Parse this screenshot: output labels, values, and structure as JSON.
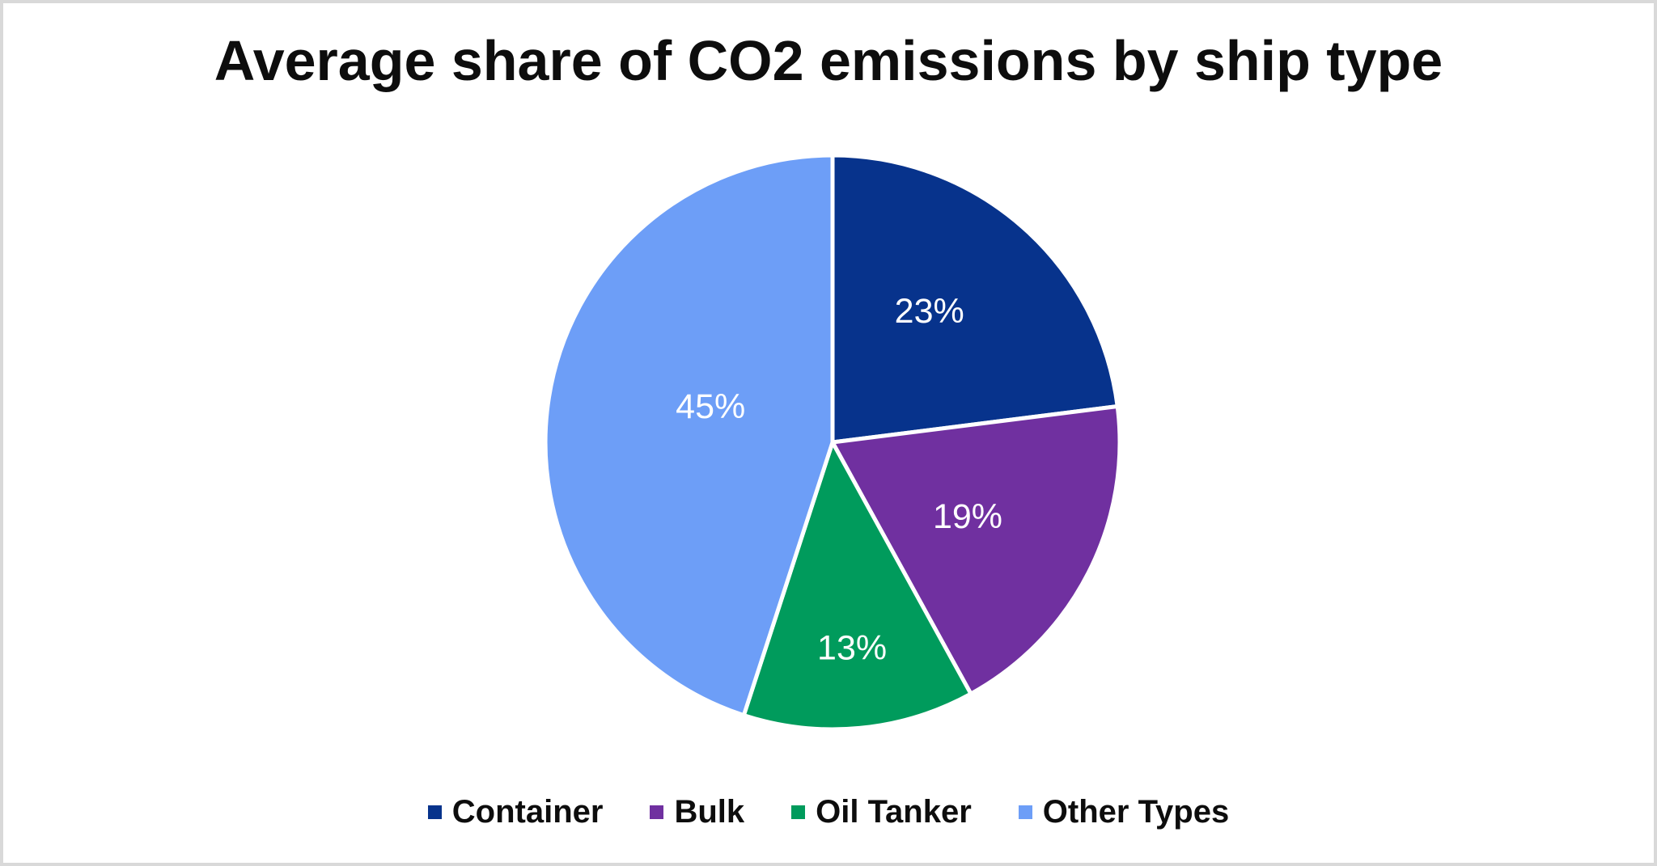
{
  "frame": {
    "background_color": "#FFFFFF",
    "border_color": "#D9D9D9"
  },
  "chart_data": {
    "type": "pie",
    "title": "Average share of CO2 emissions by ship type",
    "categories": [
      "Container",
      "Bulk",
      "Oil Tanker",
      "Other Types"
    ],
    "values": [
      23,
      19,
      13,
      45
    ],
    "slice_labels": [
      "23%",
      "19%",
      "13%",
      "45%"
    ],
    "colors": [
      "#07338C",
      "#7030A0",
      "#009B5C",
      "#6D9EF7"
    ],
    "start_angle_deg": 0,
    "direction": "clockwise",
    "separator_color": "#FFFFFF",
    "slice_label_color": "#FFFFFF",
    "title_color": "#0D0D0D",
    "legend_position": "bottom",
    "legend_text_color": "#0D0D0D"
  }
}
